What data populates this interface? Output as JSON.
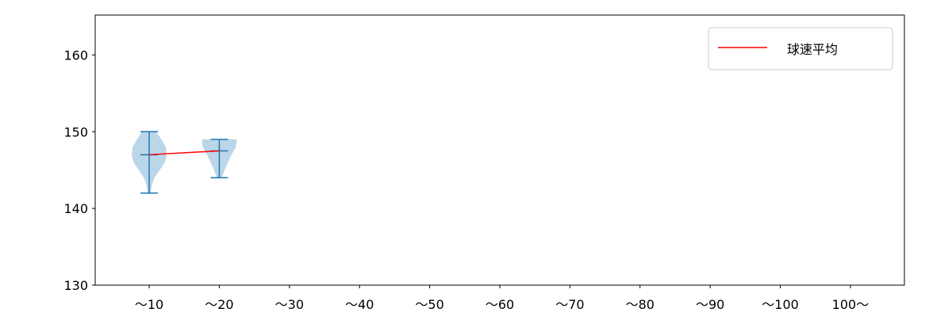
{
  "chart_data": {
    "type": "violin",
    "title": "",
    "xlabel": "",
    "ylabel": "",
    "categories": [
      "～10",
      "～20",
      "～30",
      "～40",
      "～50",
      "～60",
      "～70",
      "～80",
      "～90",
      "～100",
      "100～"
    ],
    "yticks": [
      130,
      140,
      150,
      160
    ],
    "ylim": [
      130,
      165.2
    ],
    "xlim": [
      0.23,
      11.77
    ],
    "grid": false,
    "violins": [
      {
        "position": 1,
        "min": 142,
        "max": 150,
        "mean": 147.0,
        "profile": [
          [
            142,
            0.08
          ],
          [
            143,
            0.15
          ],
          [
            144,
            0.3
          ],
          [
            145,
            0.6
          ],
          [
            146,
            0.9
          ],
          [
            147,
            1.0
          ],
          [
            148,
            0.95
          ],
          [
            149,
            0.7
          ],
          [
            150,
            0.4
          ]
        ]
      },
      {
        "position": 2,
        "min": 144,
        "max": 149,
        "mean": 147.5,
        "profile": [
          [
            144,
            0.15
          ],
          [
            145,
            0.3
          ],
          [
            146,
            0.5
          ],
          [
            147,
            0.7
          ],
          [
            148,
            0.95
          ],
          [
            149,
            1.0
          ]
        ]
      }
    ],
    "mean_line": {
      "name": "球速平均",
      "color": "#ff0000",
      "points": [
        [
          1,
          147.0
        ],
        [
          2,
          147.5
        ]
      ]
    },
    "violin_color": "#1f77b4",
    "legend": {
      "placement": "top-right",
      "entries": [
        "球速平均"
      ]
    }
  }
}
